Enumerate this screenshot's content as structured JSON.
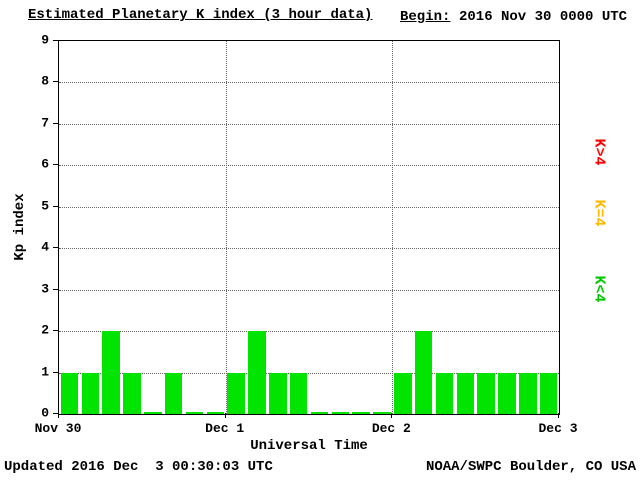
{
  "header": {
    "title": "Estimated Planetary K index (3 hour data)",
    "begin_label": "Begin:",
    "begin_value": "2016 Nov 30 0000 UTC"
  },
  "chart_data": {
    "type": "bar",
    "title": "Estimated Planetary K index (3 hour data)",
    "xlabel": "Universal Time",
    "ylabel": "Kp index",
    "ylim": [
      0,
      9
    ],
    "yticks": [
      0,
      1,
      2,
      3,
      4,
      5,
      6,
      7,
      8,
      9
    ],
    "x_hours_range": [
      0,
      72
    ],
    "bar_interval_hours": 3,
    "xtick_hours": [
      0,
      24,
      48,
      72
    ],
    "xticklabels": [
      "Nov 30",
      "Dec 1",
      "Dec 2",
      "Dec 3"
    ],
    "grid_vertical_hours": [
      24,
      48
    ],
    "values": [
      1,
      1,
      2,
      1,
      0,
      1,
      0,
      0,
      1,
      2,
      1,
      1,
      0,
      0,
      0,
      0,
      1,
      2,
      1,
      1,
      1,
      1,
      1,
      1
    ],
    "bar_color_rules": {
      "lt4": "#00e400",
      "eq4": "#ffb800",
      "gt4": "#ff0000"
    },
    "grid": true,
    "legend_position": "right"
  },
  "legend": {
    "items": [
      {
        "label": "K>4",
        "color": "#ff0000"
      },
      {
        "label": "K=4",
        "color": "#ffb800"
      },
      {
        "label": "K<4",
        "color": "#00c800"
      }
    ]
  },
  "footer": {
    "updated": "Updated 2016 Dec  3 00:30:03 UTC",
    "source": "NOAA/SWPC Boulder, CO USA"
  }
}
